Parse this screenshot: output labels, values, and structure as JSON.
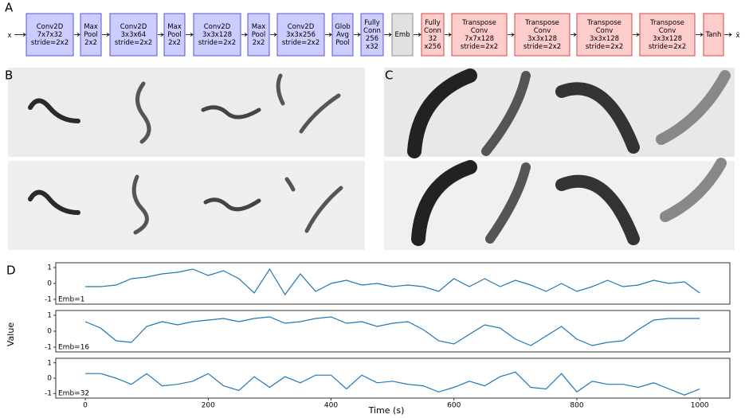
{
  "panel_a": {
    "label": "A",
    "input": "x",
    "output": "x̃",
    "blocks": [
      {
        "lines": [
          "Conv2D",
          "7x7x32",
          "stride=2x2"
        ],
        "color": "#ccccff"
      },
      {
        "lines": [
          "Max",
          "Pool",
          "2x2"
        ],
        "color": "#ccccff"
      },
      {
        "lines": [
          "Conv2D",
          "3x3x64",
          "stride=2x2"
        ],
        "color": "#ccccff"
      },
      {
        "lines": [
          "Max",
          "Pool",
          "2x2"
        ],
        "color": "#ccccff"
      },
      {
        "lines": [
          "Conv2D",
          "3x3x128",
          "stride=2x2"
        ],
        "color": "#ccccff"
      },
      {
        "lines": [
          "Max",
          "Pool",
          "2x2"
        ],
        "color": "#ccccff"
      },
      {
        "lines": [
          "Conv2D",
          "3x3x256",
          "stride=2x2"
        ],
        "color": "#ccccff"
      },
      {
        "lines": [
          "Glob",
          "Avg",
          "Pool"
        ],
        "color": "#ccccff"
      },
      {
        "lines": [
          "Fully",
          "Conn",
          "256",
          "x32"
        ],
        "color": "#ccccff"
      },
      {
        "lines": [
          "Emb"
        ],
        "color": "#e0e0e0"
      },
      {
        "lines": [
          "Fully",
          "Conn",
          "32",
          "x256"
        ],
        "color": "#ffcccc"
      },
      {
        "lines": [
          "Transpose",
          "Conv",
          "7x7x128",
          "stride=2x2"
        ],
        "color": "#ffcccc"
      },
      {
        "lines": [
          "Transpose",
          "Conv",
          "3x3x128",
          "stride=2x2"
        ],
        "color": "#ffcccc"
      },
      {
        "lines": [
          "Transpose",
          "Conv",
          "3x3x128",
          "stride=2x2"
        ],
        "color": "#ffcccc"
      },
      {
        "lines": [
          "Transpose",
          "Conv",
          "3x3x128",
          "stride=2x2"
        ],
        "color": "#ffcccc"
      },
      {
        "lines": [
          "Tanh"
        ],
        "color": "#ffcccc"
      }
    ]
  },
  "panel_b": {
    "label": "B"
  },
  "panel_c": {
    "label": "C"
  },
  "panel_d": {
    "label": "D",
    "ylabel": "Value",
    "xlabel": "Time (s)"
  },
  "chart_data": [
    {
      "type": "line",
      "annotation": "Emb=1",
      "xlim": [
        -48,
        1049
      ],
      "ylim": [
        -1.3,
        1.3
      ],
      "yticks": [
        -1,
        0,
        1
      ],
      "x": [
        0,
        25,
        50,
        75,
        100,
        125,
        150,
        175,
        200,
        225,
        250,
        275,
        300,
        325,
        350,
        375,
        400,
        425,
        450,
        475,
        500,
        525,
        550,
        575,
        600,
        625,
        650,
        675,
        700,
        725,
        750,
        775,
        800,
        825,
        850,
        875,
        900,
        925,
        950,
        975,
        1000
      ],
      "series": [
        {
          "color": "#1f77b4",
          "values": [
            -0.2,
            -0.2,
            -0.1,
            0.3,
            0.4,
            0.6,
            0.7,
            0.9,
            0.5,
            0.8,
            0.3,
            -0.6,
            0.9,
            -0.7,
            0.6,
            -0.5,
            0.0,
            0.2,
            -0.1,
            0.0,
            -0.2,
            -0.1,
            -0.2,
            -0.5,
            0.3,
            -0.2,
            0.3,
            -0.2,
            0.2,
            -0.1,
            -0.5,
            0.0,
            -0.5,
            -0.2,
            0.2,
            -0.2,
            -0.1,
            0.2,
            0.0,
            0.1,
            -0.6
          ]
        }
      ]
    },
    {
      "type": "line",
      "annotation": "Emb=16",
      "xlim": [
        -48,
        1049
      ],
      "ylim": [
        -1.3,
        1.3
      ],
      "yticks": [
        -1,
        0,
        1
      ],
      "x": [
        0,
        25,
        50,
        75,
        100,
        125,
        150,
        175,
        200,
        225,
        250,
        275,
        300,
        325,
        350,
        375,
        400,
        425,
        450,
        475,
        500,
        525,
        550,
        575,
        600,
        625,
        650,
        675,
        700,
        725,
        750,
        775,
        800,
        825,
        850,
        875,
        900,
        925,
        950,
        975,
        1000
      ],
      "series": [
        {
          "color": "#1f77b4",
          "values": [
            0.6,
            0.2,
            -0.6,
            -0.7,
            0.3,
            0.6,
            0.4,
            0.6,
            0.7,
            0.8,
            0.6,
            0.8,
            0.9,
            0.5,
            0.6,
            0.8,
            0.9,
            0.5,
            0.6,
            0.3,
            0.5,
            0.6,
            0.1,
            -0.6,
            -0.8,
            -0.2,
            0.4,
            0.2,
            -0.5,
            -0.9,
            -0.3,
            0.3,
            -0.5,
            -0.9,
            -0.7,
            -0.6,
            0.1,
            0.7,
            0.8,
            0.8,
            0.8
          ]
        }
      ]
    },
    {
      "type": "line",
      "annotation": "Emb=32",
      "xlim": [
        -48,
        1049
      ],
      "ylim": [
        -1.3,
        1.3
      ],
      "yticks": [
        -1,
        0,
        1
      ],
      "xticks": [
        0,
        200,
        400,
        600,
        800,
        1000
      ],
      "x": [
        0,
        25,
        50,
        75,
        100,
        125,
        150,
        175,
        200,
        225,
        250,
        275,
        300,
        325,
        350,
        375,
        400,
        425,
        450,
        475,
        500,
        525,
        550,
        575,
        600,
        625,
        650,
        675,
        700,
        725,
        750,
        775,
        800,
        825,
        850,
        875,
        900,
        925,
        950,
        975,
        1000
      ],
      "series": [
        {
          "color": "#1f77b4",
          "values": [
            0.3,
            0.3,
            0.0,
            -0.4,
            0.3,
            -0.5,
            -0.4,
            -0.2,
            0.3,
            -0.5,
            -0.8,
            0.1,
            -0.6,
            0.1,
            -0.3,
            0.2,
            0.2,
            -0.7,
            0.2,
            -0.3,
            -0.2,
            -0.4,
            -0.5,
            -0.9,
            -0.6,
            -0.2,
            -0.5,
            0.1,
            0.4,
            -0.6,
            -0.7,
            0.3,
            -0.9,
            -0.2,
            -0.4,
            -0.4,
            -0.6,
            -0.3,
            -0.7,
            -1.1,
            -0.7
          ]
        }
      ]
    }
  ]
}
